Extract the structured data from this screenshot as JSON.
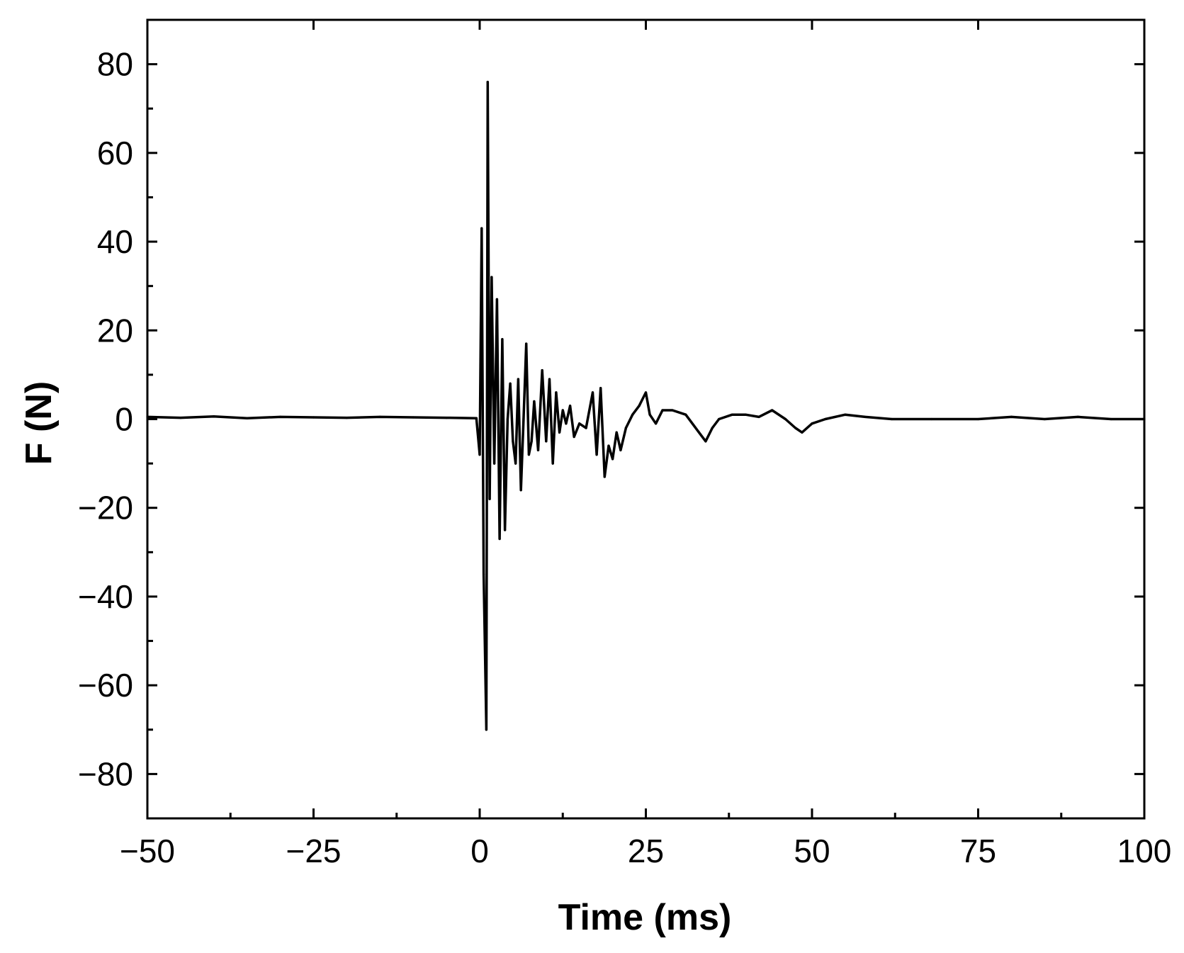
{
  "chart_data": {
    "type": "line",
    "title": "",
    "xlabel": "Time (ms)",
    "ylabel": "F (N)",
    "xlim": [
      -50,
      100
    ],
    "ylim": [
      -90,
      90
    ],
    "x_ticks": [
      -50,
      -25,
      0,
      25,
      50,
      75,
      100
    ],
    "x_tick_labels": [
      "−50",
      "−25",
      "0",
      "25",
      "50",
      "75",
      "100"
    ],
    "y_ticks": [
      -80,
      -60,
      -40,
      -20,
      0,
      20,
      40,
      60,
      80
    ],
    "y_tick_labels": [
      "−80",
      "−60",
      "−40",
      "−20",
      "0",
      "20",
      "40",
      "60",
      "80"
    ],
    "grid": false,
    "legend": "none",
    "series": [
      {
        "color": "#000000",
        "x": [
          -50,
          -45,
          -40,
          -35,
          -30,
          -25,
          -20,
          -15,
          -10,
          -5,
          -0.5,
          0,
          0.3,
          0.6,
          1.0,
          1.2,
          1.5,
          1.8,
          2.2,
          2.6,
          3.0,
          3.4,
          3.8,
          4.2,
          4.6,
          5.0,
          5.4,
          5.8,
          6.2,
          6.6,
          7.0,
          7.4,
          7.8,
          8.2,
          8.8,
          9.4,
          10.0,
          10.5,
          11.0,
          11.5,
          12.0,
          12.5,
          13.0,
          13.6,
          14.2,
          15.0,
          16.0,
          17.0,
          17.6,
          18.2,
          18.8,
          19.4,
          20.0,
          20.6,
          21.2,
          22.0,
          23.0,
          24.0,
          25.0,
          25.6,
          26.5,
          27.5,
          29.0,
          31.0,
          33.0,
          34.0,
          35.0,
          36.0,
          38.0,
          40.0,
          42.0,
          44.0,
          46.0,
          47.5,
          48.5,
          50.0,
          52.0,
          55.0,
          58.0,
          62.0,
          68.0,
          75.0,
          80.0,
          85.0,
          90.0,
          95.0,
          100.0
        ],
        "y": [
          0.5,
          0.3,
          0.6,
          0.2,
          0.5,
          0.4,
          0.3,
          0.5,
          0.4,
          0.3,
          0.2,
          -8,
          43,
          -35,
          -70,
          76,
          -18,
          32,
          -10,
          27,
          -27,
          18,
          -25,
          0,
          8,
          -5,
          -10,
          9,
          -16,
          0,
          17,
          -8,
          -5,
          4,
          -7,
          11,
          -5,
          9,
          -10,
          6,
          -3,
          2,
          -1,
          3,
          -4,
          -1,
          -2,
          6,
          -8,
          7,
          -13,
          -6,
          -9,
          -3,
          -7,
          -2,
          1,
          3,
          6,
          1,
          -1,
          2,
          2,
          1,
          -3,
          -5,
          -2,
          0,
          1,
          1,
          0.5,
          2,
          0,
          -2,
          -3,
          -1,
          0,
          1,
          0.5,
          0,
          0,
          0,
          0.5,
          0,
          0.5,
          0,
          0
        ]
      }
    ]
  }
}
